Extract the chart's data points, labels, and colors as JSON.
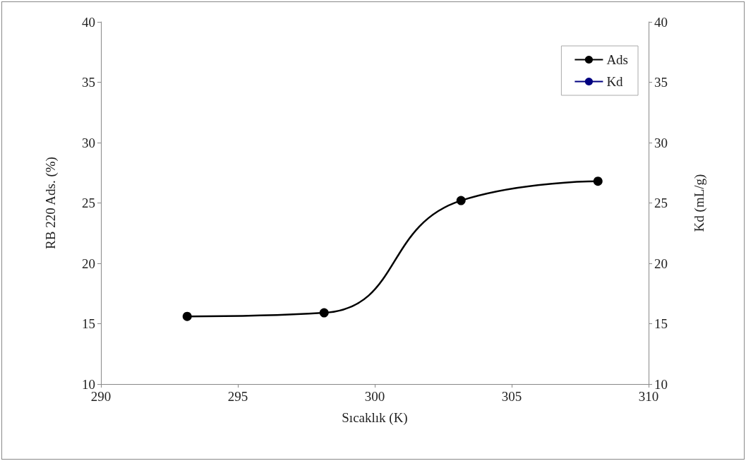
{
  "chart_data": {
    "type": "line",
    "xlabel": "Sıcaklık (K)",
    "ylabel": "RB 220 Ads. (%)",
    "y2label": "Kd (mL/g)",
    "x": [
      293.15,
      298.15,
      303.15,
      308.15
    ],
    "series": [
      {
        "name": "Ads",
        "color": "#000000",
        "values": [
          15.6,
          15.9,
          25.2,
          26.8
        ]
      },
      {
        "name": "Kd",
        "color": "#000080",
        "values": [
          null,
          null,
          null,
          null
        ]
      }
    ],
    "xlim": [
      290,
      310
    ],
    "xticks": [
      290,
      295,
      300,
      305,
      310
    ],
    "ylim": [
      10,
      40
    ],
    "yticks": [
      10,
      15,
      20,
      25,
      30,
      35,
      40
    ],
    "y2lim": [
      10,
      40
    ],
    "y2ticks": [
      10,
      15,
      20,
      25,
      30,
      35,
      40
    ],
    "legend": "top right",
    "grid": false,
    "marker": "circle",
    "line_style": "solid"
  }
}
